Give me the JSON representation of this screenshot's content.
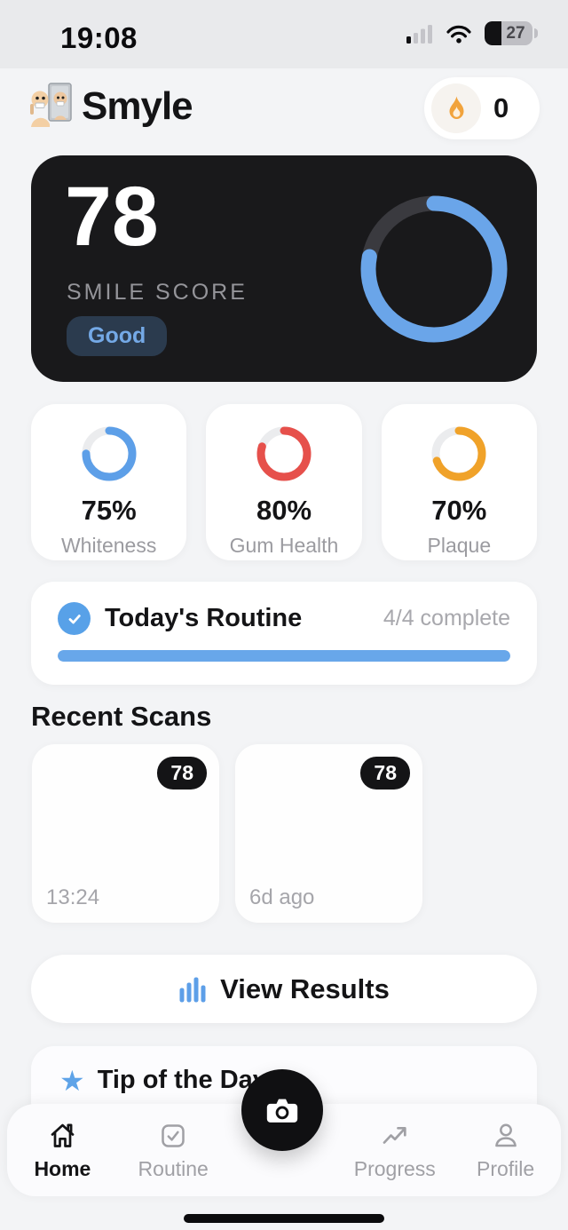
{
  "status_bar": {
    "time": "19:08",
    "battery_percent": "27"
  },
  "header": {
    "app_title": "Smyle",
    "streak_count": "0"
  },
  "score_card": {
    "score": "78",
    "label": "SMILE SCORE",
    "rating_badge": "Good",
    "ring_percent": 78,
    "ring_color": "#6aa5e9",
    "ring_track_color": "#3a3a3f",
    "bg_color": "#19191b"
  },
  "metrics": {
    "items": [
      {
        "value": "75%",
        "label": "Whiteness",
        "percent": 75,
        "color": "#5d9fe8"
      },
      {
        "value": "80%",
        "label": "Gum Health",
        "percent": 80,
        "color": "#e6504b"
      },
      {
        "value": "70%",
        "label": "Plaque",
        "percent": 70,
        "color": "#f0a229"
      }
    ]
  },
  "routine_card": {
    "title": "Today's Routine",
    "status": "4/4 complete",
    "progress_percent": 100,
    "progress_color": "#68a7ea"
  },
  "recent_scans": {
    "section_title": "Recent Scans",
    "items": [
      {
        "score_badge": "78",
        "time_label": "13:24"
      },
      {
        "score_badge": "78",
        "time_label": "6d ago"
      }
    ]
  },
  "actions": {
    "view_results_label": "View Results"
  },
  "tip_card": {
    "title": "Tip of the Day",
    "star_glyph": "★"
  },
  "tab_bar": {
    "items": [
      {
        "label": "Home",
        "icon": "home-icon",
        "active": true
      },
      {
        "label": "Routine",
        "icon": "checkbox-icon",
        "active": false
      },
      {
        "label": "Progress",
        "icon": "trend-up-icon",
        "active": false
      },
      {
        "label": "Profile",
        "icon": "person-icon",
        "active": false
      }
    ]
  },
  "icons": {
    "streak": "flame-icon",
    "routine": "check-circle-icon",
    "view_results": "bar-chart-icon",
    "camera": "camera-icon"
  }
}
